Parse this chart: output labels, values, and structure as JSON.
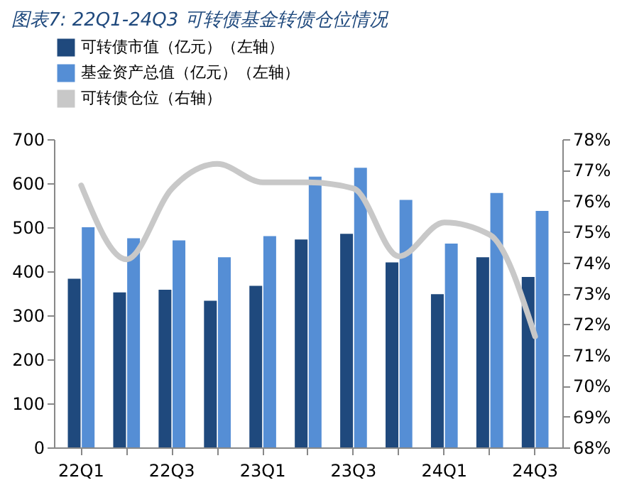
{
  "chart_data": {
    "type": "bar",
    "title": "图表7:  22Q1-24Q3 可转债基金转债仓位情况",
    "categories": [
      "22Q1",
      null,
      "22Q3",
      null,
      "23Q1",
      null,
      "23Q3",
      null,
      "24Q1",
      null,
      "24Q3"
    ],
    "series": [
      {
        "name": "可转债市值（亿元）（左轴）",
        "color": "#1f497d",
        "values": [
          383,
          352,
          358,
          333,
          367,
          472,
          485,
          420,
          348,
          432,
          387
        ]
      },
      {
        "name": "基金资产总值（亿元）（左轴）",
        "color": "#558ed5",
        "values": [
          500,
          475,
          470,
          432,
          480,
          615,
          635,
          562,
          463,
          578,
          537
        ]
      },
      {
        "name": "可转债仓位（右轴）",
        "type": "line",
        "axis": "y2",
        "color": "#c8c8c8",
        "values": [
          76.5,
          74.1,
          76.4,
          77.2,
          76.6,
          76.6,
          76.4,
          74.2,
          75.3,
          74.9,
          71.6
        ]
      }
    ],
    "ylim": [
      0,
      700
    ],
    "yticks": [
      0,
      100,
      200,
      300,
      400,
      500,
      600,
      700
    ],
    "y2lim": [
      68,
      78
    ],
    "y2ticks": [
      {
        "value": 68,
        "label": "68%"
      },
      {
        "value": 69,
        "label": "69%"
      },
      {
        "value": 70,
        "label": "70%"
      },
      {
        "value": 71,
        "label": "71%"
      },
      {
        "value": 72,
        "label": "72%"
      },
      {
        "value": 73,
        "label": "73%"
      },
      {
        "value": 74,
        "label": "74%"
      },
      {
        "value": 75,
        "label": "75%"
      },
      {
        "value": 76,
        "label": "76%"
      },
      {
        "value": 77,
        "label": "77%"
      },
      {
        "value": 78,
        "label": "78%"
      }
    ],
    "grid": false,
    "legend": "top"
  }
}
